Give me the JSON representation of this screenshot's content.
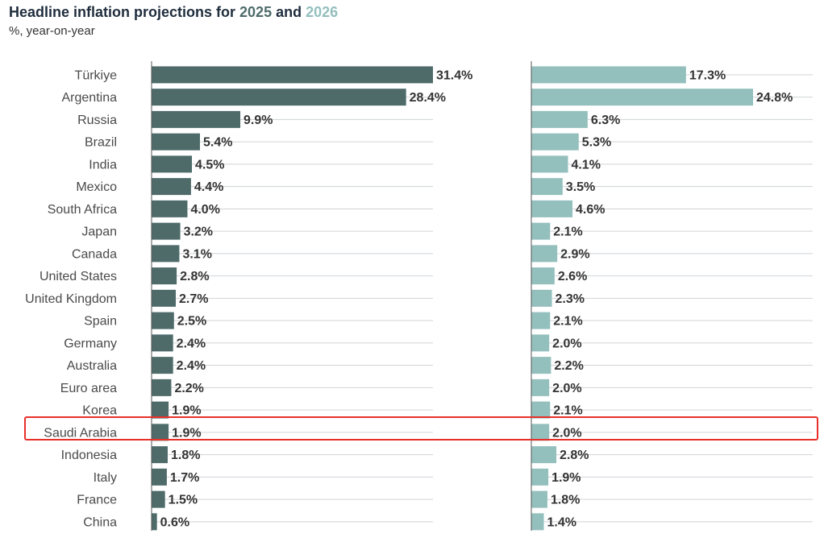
{
  "title": {
    "prefix": "Headline inflation projections for ",
    "year1": "2025",
    "mid": " and ",
    "year2": "2026"
  },
  "subtitle": "%, year-on-year",
  "colors": {
    "series_2025": "#4e6b6a",
    "series_2026": "#93bfbd",
    "highlight": "#e8302a",
    "title": "#1f2d3d"
  },
  "highlighted_category": "Saudi Arabia",
  "chart_data": {
    "type": "bar",
    "orientation": "horizontal",
    "title": "Headline inflation projections for 2025 and 2026",
    "subtitle": "%, year-on-year",
    "categories": [
      "Türkiye",
      "Argentina",
      "Russia",
      "Brazil",
      "India",
      "Mexico",
      "South Africa",
      "Japan",
      "Canada",
      "United States",
      "United Kingdom",
      "Spain",
      "Germany",
      "Australia",
      "Euro area",
      "Korea",
      "Saudi Arabia",
      "Indonesia",
      "Italy",
      "France",
      "China"
    ],
    "series": [
      {
        "name": "2025",
        "values": [
          31.4,
          28.4,
          9.9,
          5.4,
          4.5,
          4.4,
          4.0,
          3.2,
          3.1,
          2.8,
          2.7,
          2.5,
          2.4,
          2.4,
          2.2,
          1.9,
          1.9,
          1.8,
          1.7,
          1.5,
          0.6
        ]
      },
      {
        "name": "2026",
        "values": [
          17.3,
          24.8,
          6.3,
          5.3,
          4.1,
          3.5,
          4.6,
          2.1,
          2.9,
          2.6,
          2.3,
          2.1,
          2.0,
          2.2,
          2.0,
          2.1,
          2.0,
          2.8,
          1.9,
          1.8,
          1.4
        ]
      }
    ],
    "value_labels": [
      [
        "31.4%",
        "28.4%",
        "9.9%",
        "5.4%",
        "4.5%",
        "4.4%",
        "4.0%",
        "3.2%",
        "3.1%",
        "2.8%",
        "2.7%",
        "2.5%",
        "2.4%",
        "2.4%",
        "2.2%",
        "1.9%",
        "1.9%",
        "1.8%",
        "1.7%",
        "1.5%",
        "0.6%"
      ],
      [
        "17.3%",
        "24.8%",
        "6.3%",
        "5.3%",
        "4.1%",
        "3.5%",
        "4.6%",
        "2.1%",
        "2.9%",
        "2.6%",
        "2.3%",
        "2.1%",
        "2.0%",
        "2.2%",
        "2.0%",
        "2.1%",
        "2.0%",
        "2.8%",
        "1.9%",
        "1.8%",
        "1.4%"
      ]
    ],
    "grid": true,
    "legend": "none (series colors identified in title)"
  }
}
